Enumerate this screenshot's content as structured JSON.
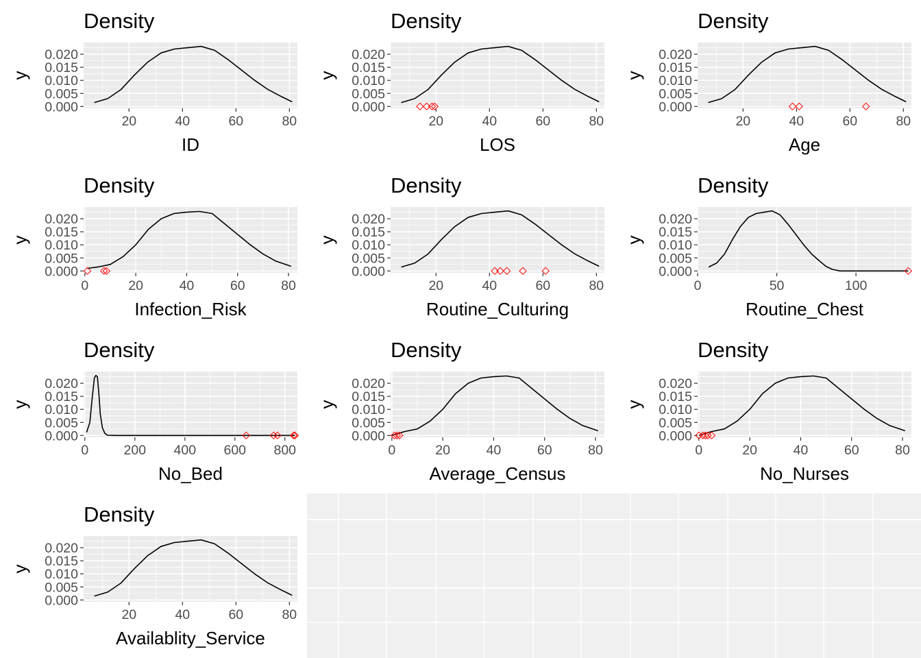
{
  "colors": {
    "panel_background": "#ebebeb",
    "grid": "#ffffff",
    "empty_panel_background": "#f0f0f0",
    "density_line": "#000000",
    "outlier_marker": "#ff0000",
    "tick_text": "#4d4d4d"
  },
  "chart_data": [
    {
      "type": "line",
      "title": "Density",
      "xlabel": "ID",
      "ylabel": "y",
      "xlim": [
        3,
        83
      ],
      "ylim": [
        -0.0007,
        0.0245
      ],
      "x_ticks": [
        20,
        40,
        60,
        80
      ],
      "y_ticks": [
        0.0,
        0.005,
        0.01,
        0.015,
        0.02
      ],
      "y_tick_labels": [
        "0.000",
        "0.005",
        "0.010",
        "0.015",
        "0.020"
      ],
      "series": [
        {
          "x": [
            7,
            12,
            17,
            22,
            27,
            32,
            37,
            42,
            47,
            52,
            57,
            62,
            67,
            72,
            77,
            81
          ],
          "y": [
            0.0015,
            0.003,
            0.0065,
            0.012,
            0.017,
            0.0205,
            0.022,
            0.0225,
            0.023,
            0.0215,
            0.018,
            0.014,
            0.01,
            0.0065,
            0.0038,
            0.0018
          ]
        }
      ],
      "outliers": []
    },
    {
      "type": "line",
      "title": "Density",
      "xlabel": "LOS",
      "ylabel": "y",
      "xlim": [
        3,
        83
      ],
      "ylim": [
        -0.0007,
        0.0245
      ],
      "x_ticks": [
        20,
        40,
        60,
        80
      ],
      "y_ticks": [
        0.0,
        0.005,
        0.01,
        0.015,
        0.02
      ],
      "y_tick_labels": [
        "0.000",
        "0.005",
        "0.010",
        "0.015",
        "0.020"
      ],
      "series": [
        {
          "x": [
            7,
            12,
            17,
            22,
            27,
            32,
            37,
            42,
            47,
            52,
            57,
            62,
            67,
            72,
            77,
            81
          ],
          "y": [
            0.0015,
            0.003,
            0.0065,
            0.012,
            0.017,
            0.0205,
            0.022,
            0.0225,
            0.023,
            0.0215,
            0.018,
            0.014,
            0.01,
            0.0065,
            0.0038,
            0.0018
          ]
        }
      ],
      "outliers": [
        14,
        16.5,
        18.5,
        19.5
      ]
    },
    {
      "type": "line",
      "title": "Density",
      "xlabel": "Age",
      "ylabel": "y",
      "xlim": [
        3,
        83
      ],
      "ylim": [
        -0.0007,
        0.0245
      ],
      "x_ticks": [
        20,
        40,
        60,
        80
      ],
      "y_ticks": [
        0.0,
        0.005,
        0.01,
        0.015,
        0.02
      ],
      "y_tick_labels": [
        "0.000",
        "0.005",
        "0.010",
        "0.015",
        "0.020"
      ],
      "series": [
        {
          "x": [
            7,
            12,
            17,
            22,
            27,
            32,
            37,
            42,
            47,
            52,
            57,
            62,
            67,
            72,
            77,
            81
          ],
          "y": [
            0.0015,
            0.003,
            0.0065,
            0.012,
            0.017,
            0.0205,
            0.022,
            0.0225,
            0.023,
            0.0215,
            0.018,
            0.014,
            0.01,
            0.0065,
            0.0038,
            0.0018
          ]
        }
      ],
      "outliers": [
        38.5,
        41,
        66
      ]
    },
    {
      "type": "line",
      "title": "Density",
      "xlabel": "Infection_Risk",
      "ylabel": "y",
      "xlim": [
        -0.5,
        83.5
      ],
      "ylim": [
        -0.0007,
        0.0245
      ],
      "x_ticks": [
        0,
        20,
        40,
        60,
        80
      ],
      "y_ticks": [
        0.0,
        0.005,
        0.01,
        0.015,
        0.02
      ],
      "y_tick_labels": [
        "0.000",
        "0.005",
        "0.010",
        "0.015",
        "0.020"
      ],
      "series": [
        {
          "x": [
            1,
            5,
            10,
            15,
            20,
            25,
            30,
            35,
            40,
            45,
            50,
            55,
            60,
            65,
            70,
            75,
            81
          ],
          "y": [
            0.001,
            0.0015,
            0.0025,
            0.0055,
            0.01,
            0.016,
            0.02,
            0.022,
            0.0225,
            0.0228,
            0.022,
            0.018,
            0.014,
            0.01,
            0.0065,
            0.0038,
            0.0018
          ]
        }
      ],
      "outliers": [
        1,
        7.5,
        8.5
      ]
    },
    {
      "type": "line",
      "title": "Density",
      "xlabel": "Routine_Culturing",
      "ylabel": "y",
      "xlim": [
        3,
        83
      ],
      "ylim": [
        -0.0007,
        0.0245
      ],
      "x_ticks": [
        20,
        40,
        60,
        80
      ],
      "y_ticks": [
        0.0,
        0.005,
        0.01,
        0.015,
        0.02
      ],
      "y_tick_labels": [
        "0.000",
        "0.005",
        "0.010",
        "0.015",
        "0.020"
      ],
      "series": [
        {
          "x": [
            7,
            12,
            17,
            22,
            27,
            32,
            37,
            42,
            47,
            52,
            57,
            62,
            67,
            72,
            77,
            81
          ],
          "y": [
            0.0015,
            0.003,
            0.0065,
            0.012,
            0.017,
            0.0205,
            0.022,
            0.0225,
            0.023,
            0.0215,
            0.018,
            0.014,
            0.01,
            0.0065,
            0.0038,
            0.0018
          ]
        }
      ],
      "outliers": [
        42,
        44,
        46.5,
        52.5,
        61
      ]
    },
    {
      "type": "line",
      "title": "Density",
      "xlabel": "Routine_Chest",
      "ylabel": "y",
      "xlim": [
        0,
        135
      ],
      "ylim": [
        -0.0007,
        0.0245
      ],
      "x_ticks": [
        0,
        50,
        100
      ],
      "y_ticks": [
        0.0,
        0.005,
        0.01,
        0.015,
        0.02
      ],
      "y_tick_labels": [
        "0.000",
        "0.005",
        "0.010",
        "0.015",
        "0.020"
      ],
      "series": [
        {
          "x": [
            7,
            12,
            17,
            22,
            27,
            32,
            37,
            42,
            47,
            52,
            57,
            62,
            67,
            72,
            77,
            81,
            85,
            90,
            110,
            133
          ],
          "y": [
            0.0015,
            0.003,
            0.0065,
            0.012,
            0.017,
            0.0205,
            0.022,
            0.0225,
            0.023,
            0.0215,
            0.018,
            0.014,
            0.01,
            0.0065,
            0.0038,
            0.0018,
            0.0006,
            0.0,
            0.0,
            0.0
          ]
        }
      ],
      "outliers": [
        133
      ]
    },
    {
      "type": "line",
      "title": "Density",
      "xlabel": "No_Bed",
      "ylabel": "y",
      "xlim": [
        -5,
        850
      ],
      "ylim": [
        -0.0007,
        0.0245
      ],
      "x_ticks": [
        0,
        200,
        400,
        600,
        800
      ],
      "y_ticks": [
        0.0,
        0.005,
        0.01,
        0.015,
        0.02
      ],
      "y_tick_labels": [
        "0.000",
        "0.005",
        "0.010",
        "0.015",
        "0.020"
      ],
      "series": [
        {
          "x": [
            7,
            20,
            30,
            38,
            44,
            50,
            56,
            62,
            70,
            80,
            90,
            120,
            300,
            600,
            840
          ],
          "y": [
            0.0012,
            0.005,
            0.015,
            0.022,
            0.023,
            0.0225,
            0.016,
            0.008,
            0.003,
            0.0008,
            0.0001,
            0.0,
            0.0,
            0.0,
            0.0
          ]
        }
      ],
      "outliers": [
        645,
        755,
        770,
        835,
        840
      ]
    },
    {
      "type": "line",
      "title": "Density",
      "xlabel": "Average_Census",
      "ylabel": "y",
      "xlim": [
        -0.5,
        83.5
      ],
      "ylim": [
        -0.0007,
        0.0245
      ],
      "x_ticks": [
        0,
        20,
        40,
        60,
        80
      ],
      "y_ticks": [
        0.0,
        0.005,
        0.01,
        0.015,
        0.02
      ],
      "y_tick_labels": [
        "0.000",
        "0.005",
        "0.010",
        "0.015",
        "0.020"
      ],
      "series": [
        {
          "x": [
            0,
            5,
            10,
            15,
            20,
            25,
            30,
            35,
            40,
            45,
            50,
            55,
            60,
            65,
            70,
            75,
            81
          ],
          "y": [
            0.0,
            0.0015,
            0.0025,
            0.0055,
            0.01,
            0.016,
            0.02,
            0.022,
            0.0225,
            0.0228,
            0.022,
            0.018,
            0.014,
            0.01,
            0.0065,
            0.0038,
            0.0018
          ]
        }
      ],
      "outliers": [
        1,
        2,
        3
      ]
    },
    {
      "type": "line",
      "title": "Density",
      "xlabel": "No_Nurses",
      "ylabel": "y",
      "xlim": [
        -0.5,
        83.5
      ],
      "ylim": [
        -0.0007,
        0.0245
      ],
      "x_ticks": [
        0,
        20,
        40,
        60,
        80
      ],
      "y_ticks": [
        0.0,
        0.005,
        0.01,
        0.015,
        0.02
      ],
      "y_tick_labels": [
        "0.000",
        "0.005",
        "0.010",
        "0.015",
        "0.020"
      ],
      "series": [
        {
          "x": [
            0,
            5,
            10,
            15,
            20,
            25,
            30,
            35,
            40,
            45,
            50,
            55,
            60,
            65,
            70,
            75,
            81
          ],
          "y": [
            0.0,
            0.0015,
            0.0025,
            0.0055,
            0.01,
            0.016,
            0.02,
            0.022,
            0.0225,
            0.0228,
            0.022,
            0.018,
            0.014,
            0.01,
            0.0065,
            0.0038,
            0.0018
          ]
        }
      ],
      "outliers": [
        0,
        1.5,
        2.5,
        3.5,
        5
      ]
    },
    {
      "type": "line",
      "title": "Density",
      "xlabel": "Availablity_Service",
      "ylabel": "y",
      "xlim": [
        3,
        83
      ],
      "ylim": [
        -0.0007,
        0.0245
      ],
      "x_ticks": [
        20,
        40,
        60,
        80
      ],
      "y_ticks": [
        0.0,
        0.005,
        0.01,
        0.015,
        0.02
      ],
      "y_tick_labels": [
        "0.000",
        "0.005",
        "0.010",
        "0.015",
        "0.020"
      ],
      "series": [
        {
          "x": [
            7,
            12,
            17,
            22,
            27,
            32,
            37,
            42,
            47,
            52,
            57,
            62,
            67,
            72,
            77,
            81
          ],
          "y": [
            0.0015,
            0.003,
            0.0065,
            0.012,
            0.017,
            0.0205,
            0.022,
            0.0225,
            0.023,
            0.0215,
            0.018,
            0.014,
            0.01,
            0.0065,
            0.0038,
            0.0018
          ]
        }
      ],
      "outliers": []
    }
  ]
}
